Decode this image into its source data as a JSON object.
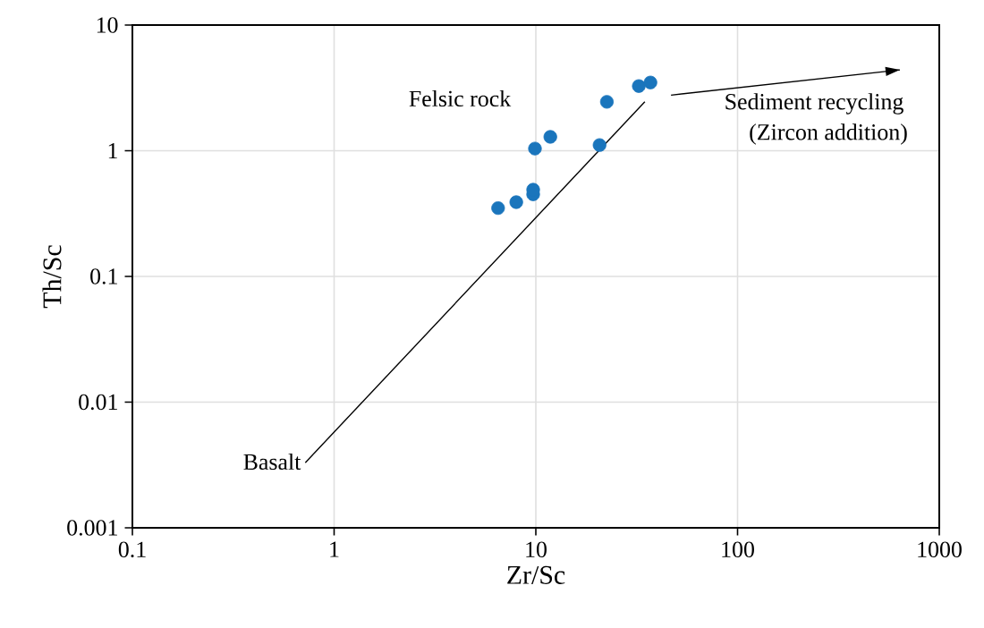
{
  "chart_data": {
    "type": "scatter",
    "xlabel": "Zr/Sc",
    "ylabel": "Th/Sc",
    "log": "xy",
    "grid": true,
    "xlim": [
      0.1,
      1000
    ],
    "ylim": [
      0.001,
      10
    ],
    "xticks": [
      0.1,
      1,
      10,
      100,
      1000
    ],
    "yticks": [
      0.001,
      0.01,
      0.1,
      1,
      10
    ],
    "series": [
      {
        "marker": "circle",
        "color": "#1a75bc",
        "x": [
          6.5,
          8.0,
          9.7,
          9.7,
          9.9,
          11.8,
          20.7,
          22.5,
          32.4,
          37
        ],
        "values": [
          0.35,
          0.39,
          0.45,
          0.49,
          1.04,
          1.29,
          1.11,
          2.45,
          3.27,
          3.49
        ]
      },
      {
        "type": "line",
        "marker": "none",
        "color": "#000000",
        "x": [
          0.72,
          34.7
        ],
        "values": [
          0.0033,
          2.45
        ]
      },
      {
        "type": "line",
        "marker": "none",
        "color": "#000000",
        "x": [
          46.8,
          638
        ],
        "values": [
          2.77,
          4.4
        ]
      }
    ],
    "annotations": [
      "Felsic rock",
      "Sediment recycling",
      "(Zircon addition)",
      "Basalt"
    ]
  }
}
